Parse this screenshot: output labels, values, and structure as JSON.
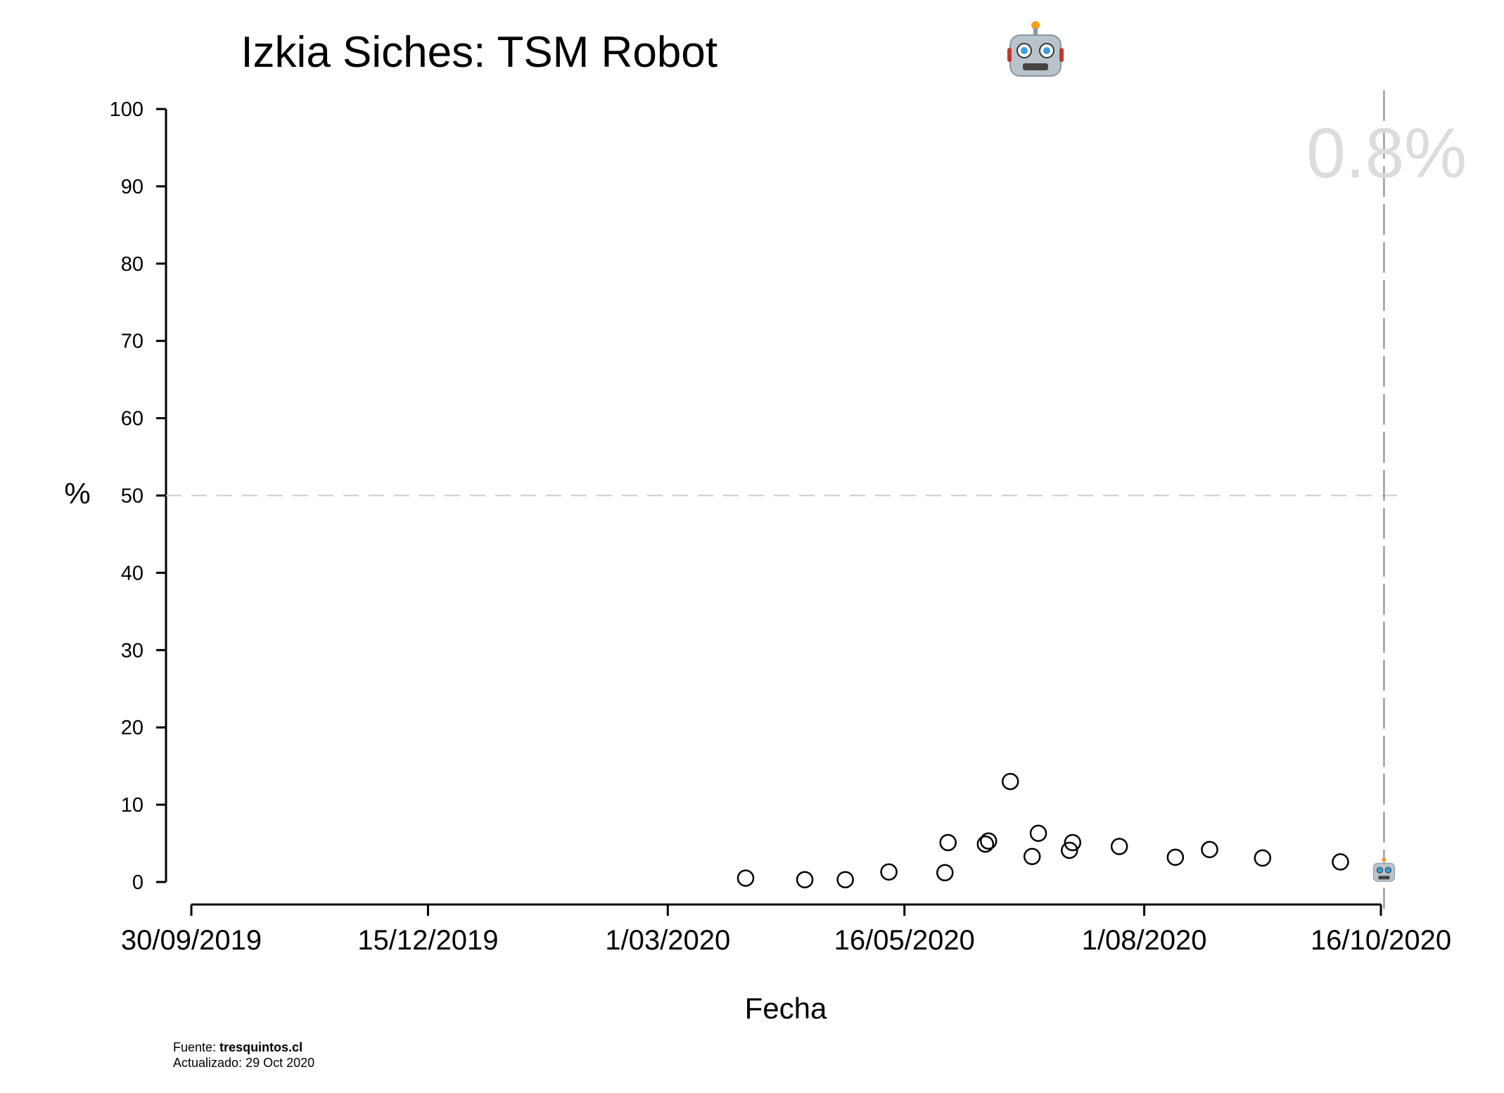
{
  "chart_data": {
    "type": "scatter",
    "title": "Izkia Siches: TSM Robot",
    "title_icon": "robot-face-icon",
    "xlabel": "Fecha",
    "ylabel": "%",
    "ylim": [
      0,
      100
    ],
    "yticks": [
      0,
      10,
      20,
      30,
      40,
      50,
      60,
      70,
      80,
      90,
      100
    ],
    "xlim": [
      "2019-09-30",
      "2020-10-16"
    ],
    "xticks": [
      {
        "date": "2019-09-30",
        "label": "30/09/2019"
      },
      {
        "date": "2019-12-15",
        "label": "15/12/2019"
      },
      {
        "date": "2020-03-01",
        "label": "1/03/2020"
      },
      {
        "date": "2020-05-16",
        "label": "16/05/2020"
      },
      {
        "date": "2020-08-01",
        "label": "1/08/2020"
      },
      {
        "date": "2020-10-16",
        "label": "16/10/2020"
      }
    ],
    "reference_hline": 50,
    "reference_vline": "2020-10-17",
    "latest_value_label": "0.8%",
    "series": [
      {
        "marker": "open-circle",
        "points": [
          {
            "x": "2020-03-26",
            "y": 0.5
          },
          {
            "x": "2020-04-14",
            "y": 0.3
          },
          {
            "x": "2020-04-27",
            "y": 0.3
          },
          {
            "x": "2020-05-11",
            "y": 1.3
          },
          {
            "x": "2020-05-29",
            "y": 1.2
          },
          {
            "x": "2020-05-30",
            "y": 5.1
          },
          {
            "x": "2020-06-11",
            "y": 4.9
          },
          {
            "x": "2020-06-12",
            "y": 5.3
          },
          {
            "x": "2020-06-19",
            "y": 13.0
          },
          {
            "x": "2020-06-26",
            "y": 3.3
          },
          {
            "x": "2020-06-28",
            "y": 6.3
          },
          {
            "x": "2020-07-08",
            "y": 4.1
          },
          {
            "x": "2020-07-09",
            "y": 5.1
          },
          {
            "x": "2020-07-24",
            "y": 4.6
          },
          {
            "x": "2020-08-11",
            "y": 3.2
          },
          {
            "x": "2020-08-22",
            "y": 4.2
          },
          {
            "x": "2020-09-08",
            "y": 3.1
          },
          {
            "x": "2020-10-03",
            "y": 2.6
          }
        ]
      },
      {
        "marker": "robot-face-icon",
        "points": [
          {
            "x": "2020-10-17",
            "y": 0.8
          }
        ]
      }
    ],
    "grid": false,
    "legend": "none"
  },
  "footer": {
    "source_prefix": "Fuente: ",
    "source_name": "tresquintos.cl",
    "updated": "Actualizado: 29 Oct 2020"
  },
  "colors": {
    "markers": "#000000",
    "reference_lines": "#cccccc",
    "latest_value": "#dcdcdc"
  }
}
